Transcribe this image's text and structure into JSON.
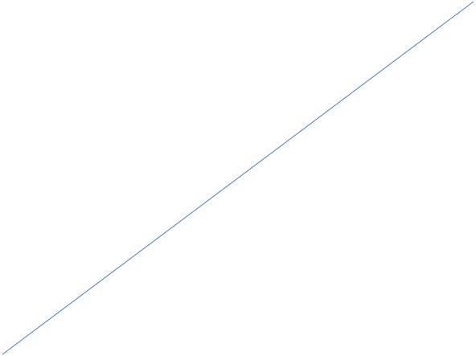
{
  "chart_data": {
    "type": "line",
    "title": "",
    "xlabel": "",
    "ylabel": "",
    "grid": false,
    "legend": "none",
    "xlim": [
      0,
      1
    ],
    "ylim": [
      0,
      1
    ],
    "series": [
      {
        "color": "#4a7ebb",
        "x": [
          0,
          1
        ],
        "y": [
          0,
          1
        ]
      }
    ]
  }
}
